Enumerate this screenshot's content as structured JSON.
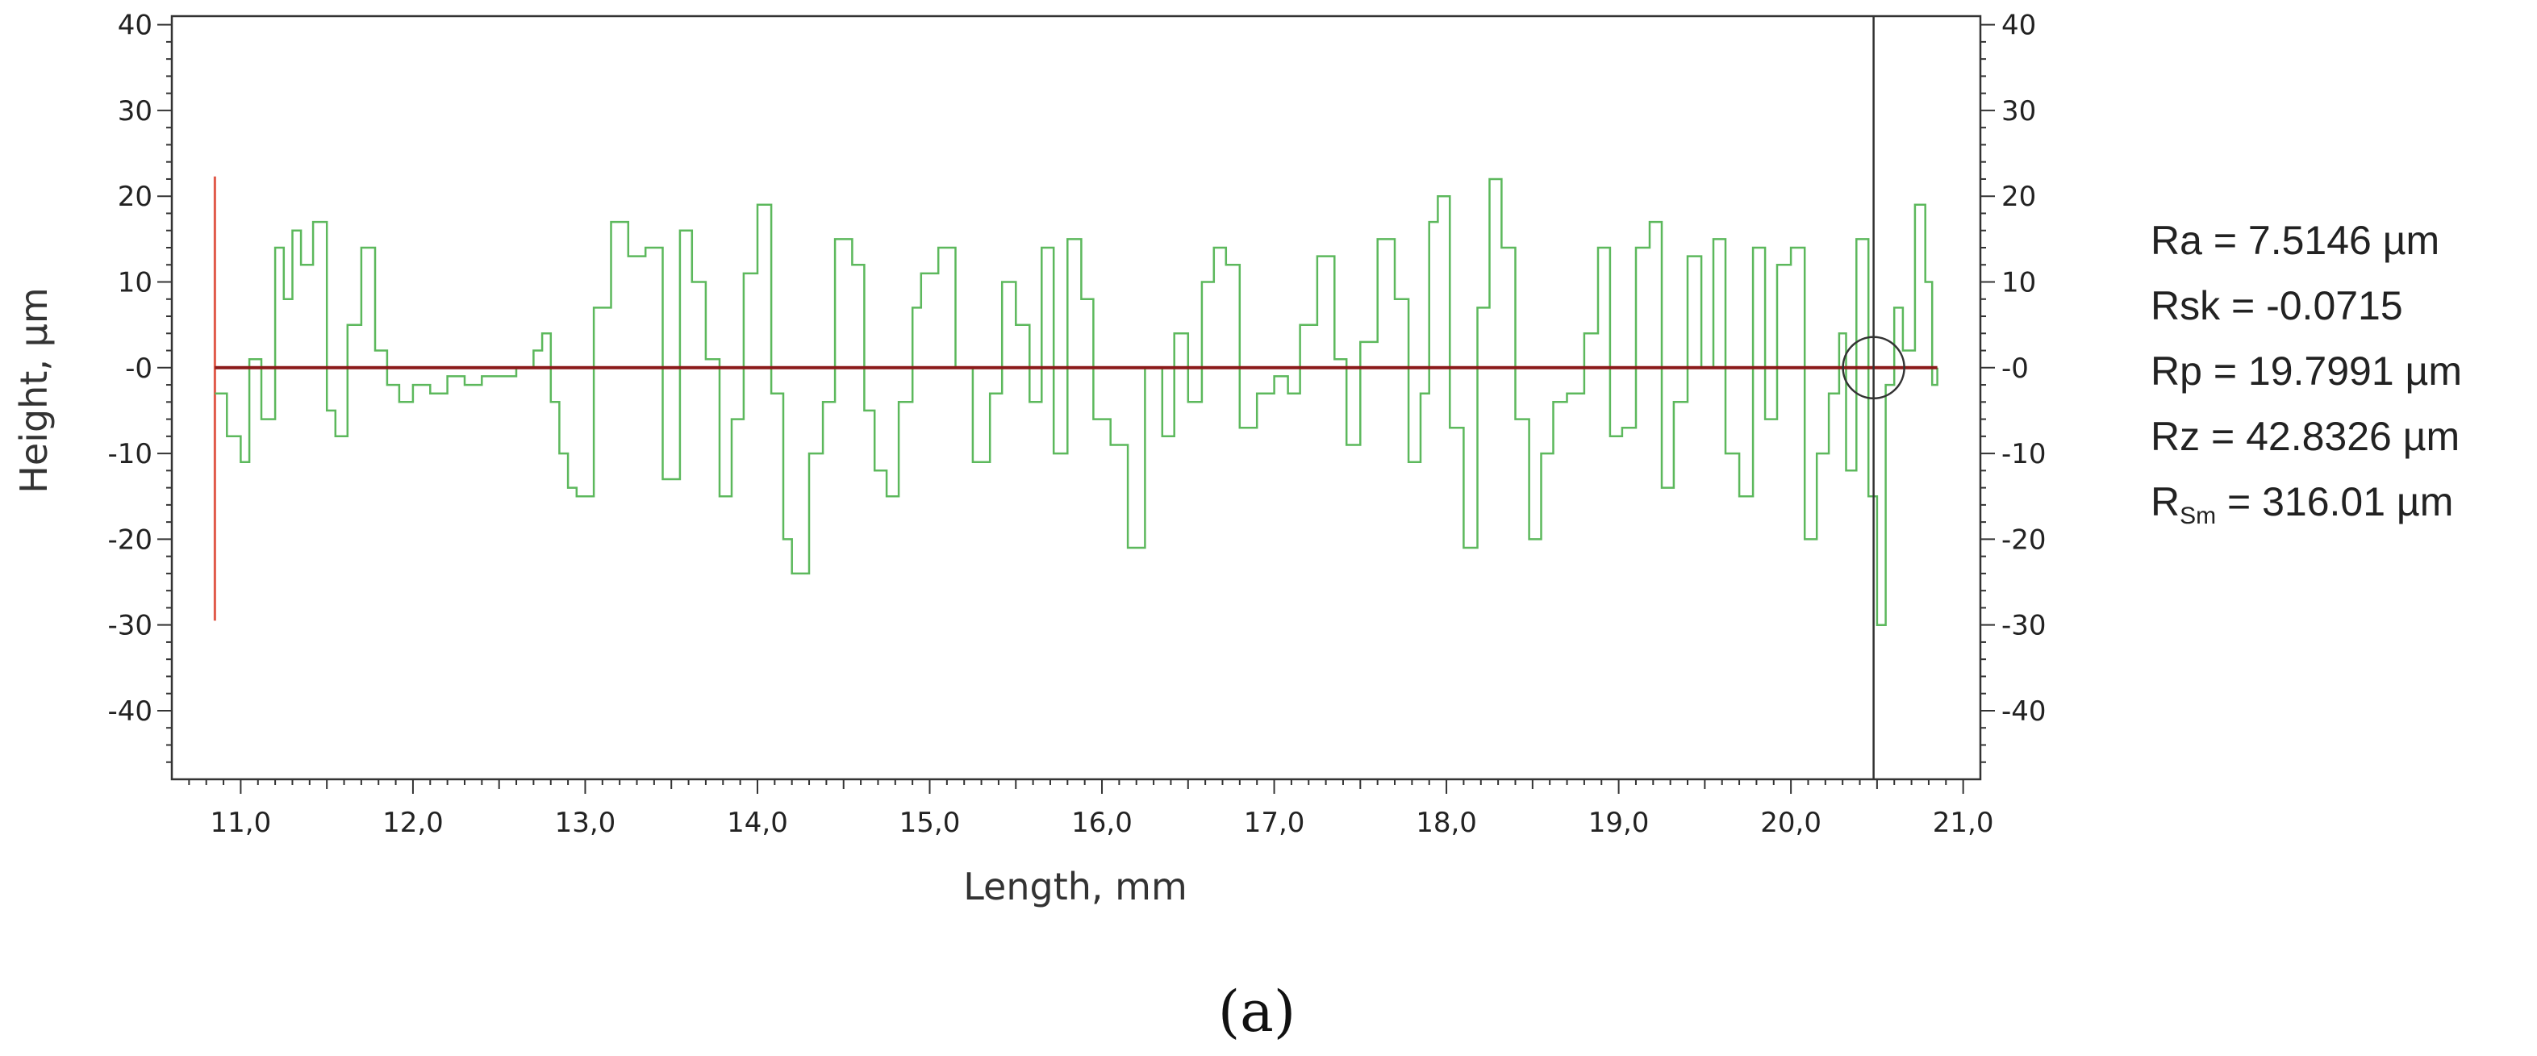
{
  "chart_data": {
    "type": "line",
    "xlabel": "Length, mm",
    "ylabel": "Height, µm",
    "xlim": [
      10.6,
      21.1
    ],
    "ylim": [
      -48,
      41
    ],
    "x_ticks": [
      11.0,
      12.0,
      13.0,
      14.0,
      15.0,
      16.0,
      17.0,
      18.0,
      19.0,
      20.0,
      21.0
    ],
    "x_tick_labels": [
      "11,0",
      "12,0",
      "13,0",
      "14,0",
      "15,0",
      "16,0",
      "17,0",
      "18,0",
      "19,0",
      "20,0",
      "21,0"
    ],
    "y_ticks": [
      40,
      30,
      20,
      10,
      0,
      -10,
      -20,
      -30,
      -40
    ],
    "y_tick_labels": [
      "40",
      "30",
      "20",
      "10",
      "-0",
      "-10",
      "-20",
      "-30",
      "-40"
    ],
    "grid": true,
    "excluded_regions": [
      [
        10.6,
        10.85
      ],
      [
        20.85,
        21.1
      ]
    ],
    "mean_line_y": 0,
    "red_marker": {
      "x": 10.85,
      "y_range": [
        -29.5,
        22.3
      ]
    },
    "cursor": {
      "x": 20.48,
      "circle_y": 0
    },
    "colors": {
      "profile": "#5cb85c",
      "mean_line": "#8b1a1a",
      "marker": "#e05a4a",
      "cursor": "#333333",
      "hatch": "#9a9a9a"
    },
    "series": [
      {
        "x": [
          10.85,
          10.92,
          11.0,
          11.05,
          11.12,
          11.2,
          11.25,
          11.3,
          11.35,
          11.42,
          11.5,
          11.55,
          11.62,
          11.7,
          11.78,
          11.85,
          11.92,
          12.0,
          12.1,
          12.2,
          12.3,
          12.4,
          12.5,
          12.6,
          12.7,
          12.75,
          12.8,
          12.85,
          12.9,
          12.95,
          13.05,
          13.15,
          13.25,
          13.35,
          13.45,
          13.55,
          13.62,
          13.7,
          13.78,
          13.85,
          13.92,
          14.0,
          14.08,
          14.15,
          14.2,
          14.3,
          14.38,
          14.45,
          14.55,
          14.62,
          14.68,
          14.75,
          14.82,
          14.9,
          14.95,
          15.05,
          15.15,
          15.25,
          15.35,
          15.42,
          15.5,
          15.58,
          15.65,
          15.72,
          15.8,
          15.88,
          15.95,
          16.05,
          16.15,
          16.25,
          16.35,
          16.42,
          16.5,
          16.58,
          16.65,
          16.72,
          16.8,
          16.9,
          17.0,
          17.08,
          17.15,
          17.25,
          17.35,
          17.42,
          17.5,
          17.6,
          17.7,
          17.78,
          17.85,
          17.9,
          17.95,
          18.02,
          18.1,
          18.18,
          18.25,
          18.32,
          18.4,
          18.48,
          18.55,
          18.62,
          18.7,
          18.8,
          18.88,
          18.95,
          19.02,
          19.1,
          19.18,
          19.25,
          19.32,
          19.4,
          19.48,
          19.55,
          19.62,
          19.7,
          19.78,
          19.85,
          19.92,
          20.0,
          20.08,
          20.15,
          20.22,
          20.28,
          20.32,
          20.38,
          20.45,
          20.5,
          20.55,
          20.6,
          20.65,
          20.72,
          20.78,
          20.82,
          20.85
        ],
        "y": [
          -3,
          -8,
          -11,
          1,
          -6,
          14,
          8,
          16,
          12,
          17,
          -5,
          -8,
          5,
          14,
          2,
          -2,
          -4,
          -2,
          -3,
          -1,
          -2,
          -1,
          -1,
          0,
          2,
          4,
          -4,
          -10,
          -14,
          -15,
          7,
          17,
          13,
          14,
          -13,
          16,
          10,
          1,
          -15,
          -6,
          11,
          19,
          -3,
          -20,
          -24,
          -10,
          -4,
          15,
          12,
          -5,
          -12,
          -15,
          -4,
          7,
          11,
          14,
          0,
          -11,
          -3,
          10,
          5,
          -4,
          14,
          -10,
          15,
          8,
          -6,
          -9,
          -21,
          0,
          -8,
          4,
          -4,
          10,
          14,
          12,
          -7,
          -3,
          -1,
          -3,
          5,
          13,
          1,
          -9,
          3,
          15,
          8,
          -11,
          -3,
          17,
          20,
          -7,
          -21,
          7,
          22,
          14,
          -6,
          -20,
          -10,
          -4,
          -3,
          4,
          14,
          -8,
          -7,
          14,
          17,
          -14,
          -4,
          13,
          0,
          15,
          -10,
          -15,
          14,
          -6,
          12,
          14,
          -20,
          -10,
          -3,
          4,
          -12,
          15,
          -15,
          -30,
          -2,
          7,
          2,
          19,
          10,
          -2,
          0
        ]
      }
    ]
  },
  "stats": [
    {
      "label": "Ra",
      "sub": "",
      "value": " = 7.5146 µm"
    },
    {
      "label": "Rsk",
      "sub": "",
      "value": " = -0.0715"
    },
    {
      "label": "Rp",
      "sub": "",
      "value": " = 19.7991 µm"
    },
    {
      "label": "Rz",
      "sub": "",
      "value": " = 42.8326 µm"
    },
    {
      "label": "R",
      "sub": "Sm",
      "value": " = 316.01 µm"
    }
  ],
  "caption": "(a)"
}
